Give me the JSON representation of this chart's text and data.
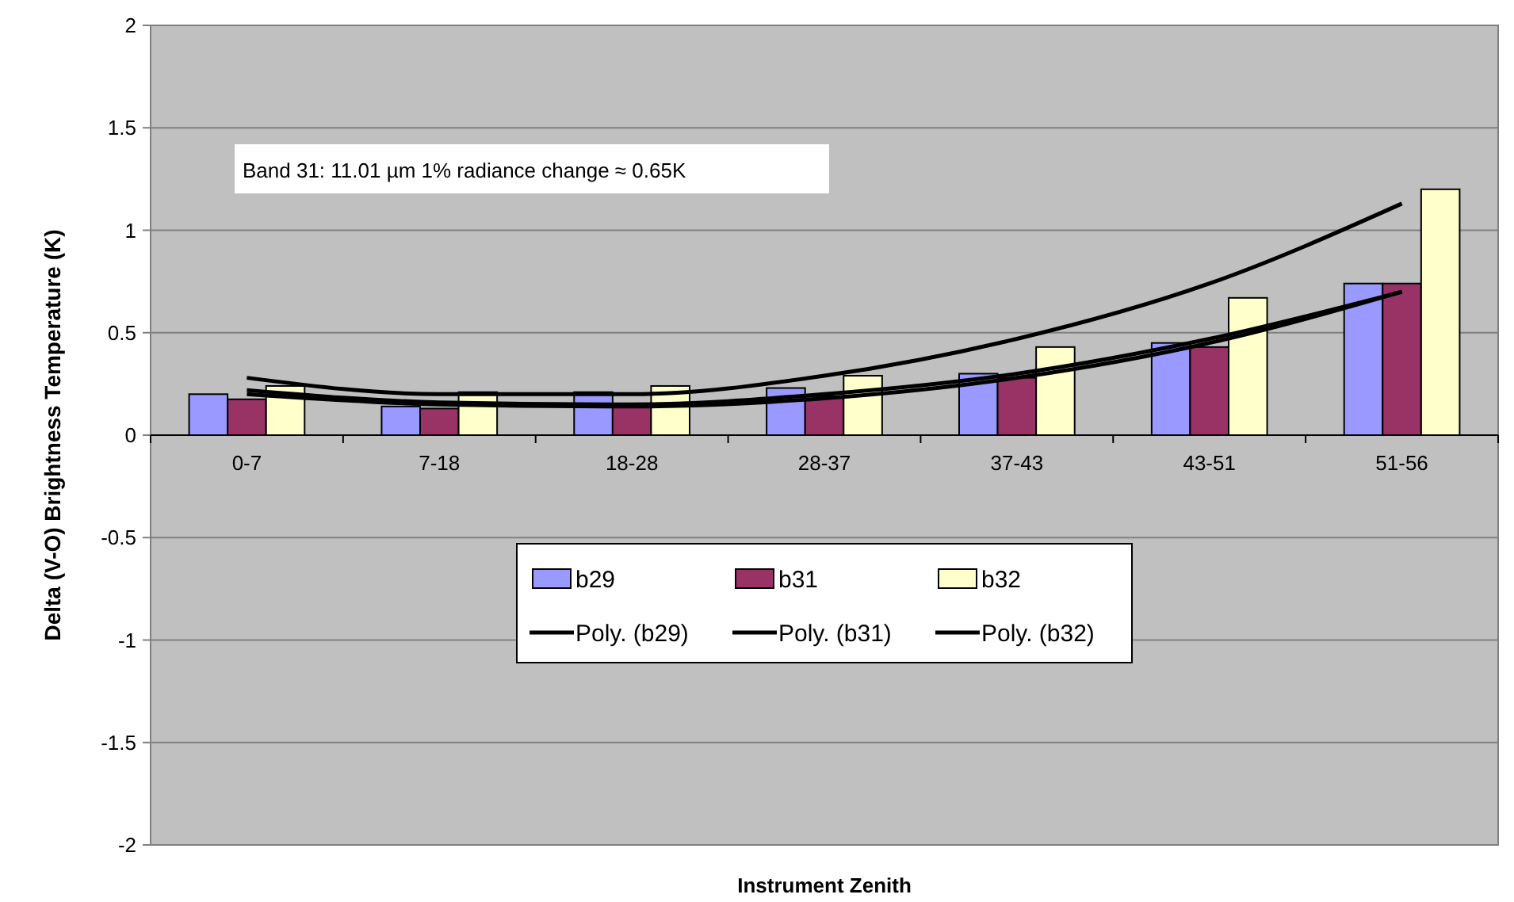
{
  "chart_data": {
    "type": "bar",
    "xlabel": "Instrument Zenith",
    "ylabel": "Delta (V-O) Brightness Temperature (K)",
    "categories": [
      "0-7",
      "7-18",
      "18-28",
      "28-37",
      "37-43",
      "43-51",
      "51-56"
    ],
    "series": [
      {
        "name": "b29",
        "color": "#9999ff",
        "values": [
          0.2,
          0.14,
          0.21,
          0.23,
          0.3,
          0.45,
          0.74
        ]
      },
      {
        "name": "b31",
        "color": "#993366",
        "values": [
          0.175,
          0.13,
          0.14,
          0.19,
          0.28,
          0.43,
          0.74
        ]
      },
      {
        "name": "b32",
        "color": "#ffffcc",
        "values": [
          0.24,
          0.21,
          0.24,
          0.29,
          0.43,
          0.67,
          1.2
        ]
      },
      {
        "name": "Poly. (b29)",
        "type": "line",
        "color": "#000000",
        "values": [
          0.22,
          0.16,
          0.15,
          0.2,
          0.3,
          0.47,
          0.7
        ]
      },
      {
        "name": "Poly. (b31)",
        "type": "line",
        "color": "#000000",
        "values": [
          0.2,
          0.15,
          0.14,
          0.18,
          0.28,
          0.45,
          0.7
        ]
      },
      {
        "name": "Poly. (b32)",
        "type": "line",
        "color": "#000000",
        "values": [
          0.28,
          0.2,
          0.2,
          0.29,
          0.47,
          0.74,
          1.13
        ]
      }
    ],
    "ylim": [
      -2,
      2
    ],
    "yticks": [
      -2,
      -1.5,
      -1,
      -0.5,
      0,
      0.5,
      1,
      1.5,
      2
    ],
    "grid": "y",
    "legend": "bottom",
    "annotations": [
      "Band 31: 11.01 µm 1% radiance change ≈ 0.65K"
    ]
  }
}
